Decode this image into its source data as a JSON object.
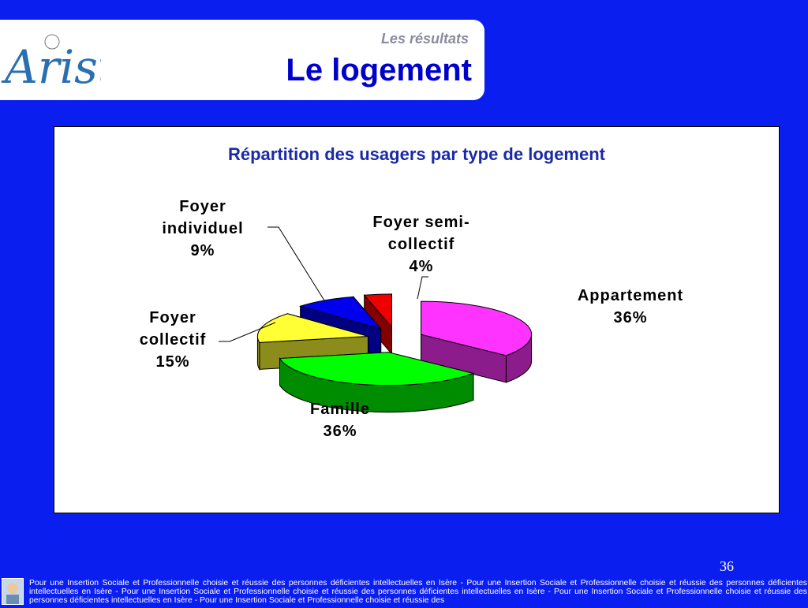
{
  "header": {
    "subtitle": "Les résultats",
    "title": "Le logement",
    "logo_text": "Arist"
  },
  "chart_data": {
    "type": "pie",
    "title": "Répartition des usagers par type de logement",
    "slices": [
      {
        "name": "Appartement",
        "value": 36,
        "label": "36%",
        "color": "#ff33ff"
      },
      {
        "name": "Famille",
        "value": 36,
        "label": "36%",
        "color": "#00ff00"
      },
      {
        "name": "Foyer collectif",
        "value": 15,
        "label": "15%",
        "color": "#ffff33"
      },
      {
        "name": "Foyer individuel",
        "value": 9,
        "label": "9%",
        "color": "#0000ee"
      },
      {
        "name": "Foyer semi-collectif",
        "value": 4,
        "label": "4%",
        "color": "#ee0000"
      }
    ],
    "exploded": true,
    "three_d": true
  },
  "labels": {
    "foyer_individuel_l1": "Foyer",
    "foyer_individuel_l2": "individuel",
    "foyer_individuel_pct": "9%",
    "foyer_semi_l1": "Foyer semi-",
    "foyer_semi_l2": "collectif",
    "foyer_semi_pct": "4%",
    "appartement_l1": "Appartement",
    "appartement_pct": "36%",
    "foyer_collectif_l1": "Foyer",
    "foyer_collectif_l2": "collectif",
    "foyer_collectif_pct": "15%",
    "famille_l1": "Famille",
    "famille_pct": "36%"
  },
  "page_number": "36",
  "footer_text": "Pour une Insertion Sociale et Professionnelle choisie et réussie des personnes déficientes intellectuelles en Isère - Pour une Insertion Sociale et Professionnelle choisie et réussie des personnes déficientes intellectuelles en Isère - Pour une Insertion Sociale et Professionnelle choisie et réussie des personnes déficientes intellectuelles en Isère - Pour une Insertion Sociale et Professionnelle choisie et réussie des personnes déficientes intellectuelles en Isère - Pour une Insertion Sociale et Professionnelle choisie et réussie des"
}
